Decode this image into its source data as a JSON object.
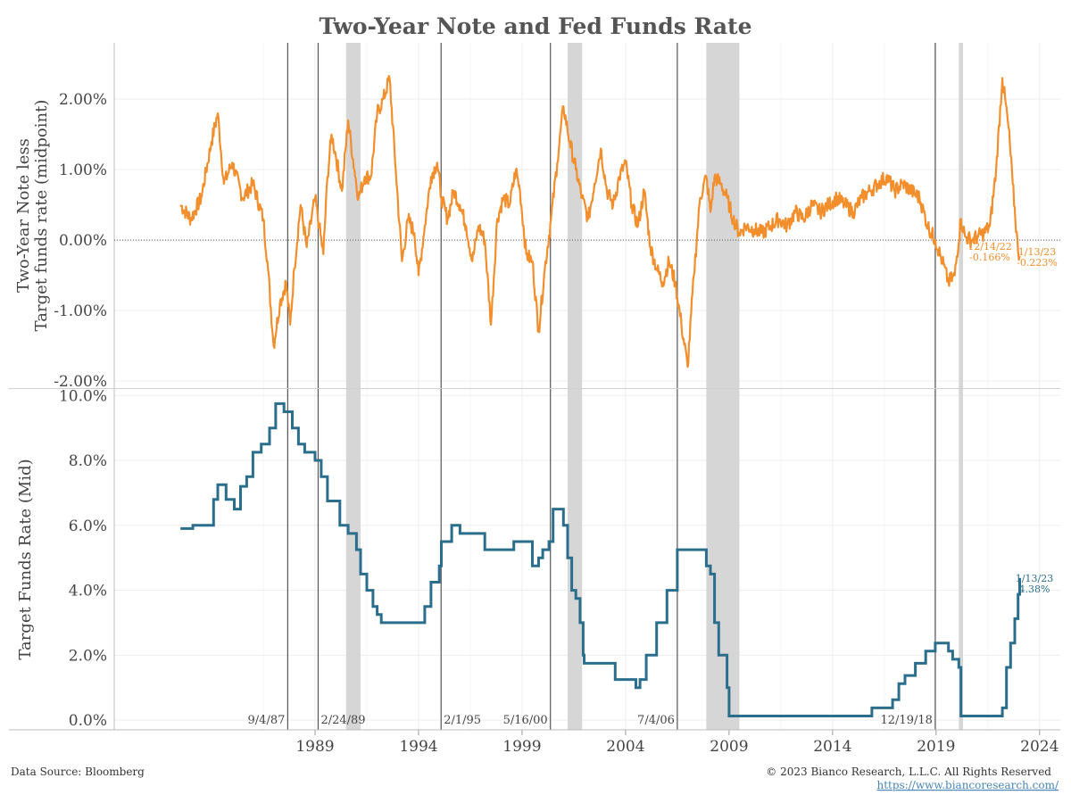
{
  "title": "Two-Year Note and Fed Funds Rate",
  "footer": {
    "source": "Data Source: Bloomberg",
    "copyright": "© 2023 Bianco Research, L.L.C. All Rights Reserved",
    "url": "https://www.biancoresearch.com/"
  },
  "colors": {
    "spread": "#f28e2b",
    "fedfunds": "#2a6e8c",
    "recession": "#d6d6d6",
    "event_line": "#555555",
    "grid": "#eeeeee"
  },
  "chart_data": [
    {
      "type": "line",
      "panel": "top",
      "ylabel": "Two-Year Note less\nTarget funds rate (midpoint)",
      "ylim": [
        -2.1,
        2.8
      ],
      "yticks": [
        2.0,
        1.0,
        0.0,
        -1.0,
        -2.0
      ],
      "ytick_labels": [
        "2.00%",
        "1.00%",
        "0.00%",
        "-1.00%",
        "-2.00%"
      ],
      "zero_line": "dotted",
      "series": [
        {
          "x": [
            1982.5,
            1983.0,
            1983.5,
            1984.0,
            1984.3,
            1984.6,
            1985.0,
            1985.5,
            1986.0,
            1986.5,
            1986.7,
            1987.0,
            1987.3,
            1987.6,
            1987.8,
            1988.0,
            1988.3,
            1988.6,
            1989.0,
            1989.2,
            1989.4,
            1989.6,
            1989.8,
            1990.0,
            1990.3,
            1990.6,
            1990.9,
            1991.1,
            1991.4,
            1991.7,
            1992.0,
            1992.3,
            1992.6,
            1992.9,
            1993.2,
            1993.5,
            1993.8,
            1994.0,
            1994.3,
            1994.6,
            1994.9,
            1995.1,
            1995.4,
            1995.7,
            1996.0,
            1996.3,
            1996.6,
            1996.9,
            1997.2,
            1997.5,
            1997.8,
            1998.1,
            1998.4,
            1998.7,
            1998.9,
            1999.2,
            1999.5,
            1999.8,
            2000.1,
            2000.4,
            2000.7,
            2001.0,
            2001.3,
            2001.6,
            2001.9,
            2002.2,
            2002.5,
            2002.8,
            2003.1,
            2003.4,
            2003.7,
            2004.0,
            2004.3,
            2004.6,
            2004.9,
            2005.2,
            2005.5,
            2005.8,
            2006.1,
            2006.4,
            2006.7,
            2007.0,
            2007.3,
            2007.6,
            2007.9,
            2008.1,
            2008.3,
            2008.6,
            2008.9,
            2009.2,
            2009.5,
            2009.8,
            2010.2,
            2010.6,
            2011.0,
            2011.4,
            2011.8,
            2012.2,
            2012.6,
            2013.0,
            2013.4,
            2013.8,
            2014.2,
            2014.6,
            2015.0,
            2015.4,
            2015.8,
            2016.2,
            2016.6,
            2017.0,
            2017.4,
            2017.8,
            2018.2,
            2018.6,
            2018.96,
            2019.3,
            2019.6,
            2019.9,
            2020.2,
            2020.4,
            2020.7,
            2021.0,
            2021.3,
            2021.6,
            2021.9,
            2022.2,
            2022.5,
            2022.7,
            2022.96,
            2023.04
          ],
          "y": [
            0.5,
            0.3,
            0.6,
            1.4,
            1.8,
            0.8,
            1.1,
            0.6,
            0.8,
            0.3,
            -0.3,
            -1.5,
            -0.9,
            -0.6,
            -1.2,
            -0.4,
            0.5,
            -0.1,
            0.6,
            0.2,
            -0.2,
            0.9,
            1.5,
            1.2,
            0.7,
            1.7,
            1.0,
            0.6,
            0.9,
            0.9,
            1.8,
            2.0,
            2.3,
            1.0,
            -0.3,
            0.3,
            0.1,
            -0.5,
            0.2,
            0.9,
            1.1,
            0.6,
            0.3,
            0.7,
            0.5,
            0.2,
            -0.3,
            0.2,
            0.0,
            -1.2,
            0.3,
            0.6,
            0.5,
            1.0,
            0.7,
            -0.2,
            -0.3,
            -1.3,
            -0.4,
            0.3,
            1.1,
            1.9,
            1.4,
            1.0,
            0.6,
            0.3,
            0.8,
            1.3,
            0.7,
            0.5,
            0.9,
            1.1,
            0.5,
            0.2,
            0.7,
            -0.1,
            -0.4,
            -0.6,
            -0.3,
            -0.6,
            -1.2,
            -1.8,
            -0.5,
            0.6,
            0.9,
            0.4,
            0.9,
            0.8,
            0.6,
            0.3,
            0.1,
            0.2,
            0.15,
            0.1,
            0.2,
            0.3,
            0.2,
            0.4,
            0.3,
            0.5,
            0.4,
            0.5,
            0.6,
            0.5,
            0.4,
            0.6,
            0.7,
            0.8,
            0.9,
            0.7,
            0.8,
            0.7,
            0.6,
            0.2,
            0.0,
            -0.3,
            -0.6,
            -0.5,
            0.3,
            0.05,
            0.0,
            0.05,
            0.1,
            0.2,
            1.0,
            2.3,
            1.6,
            0.8,
            -0.166,
            -0.223
          ]
        }
      ],
      "annotations": [
        {
          "date": "12/14/22",
          "value": "-0.166%"
        },
        {
          "date": "1/13/23",
          "value": "-0.223%"
        }
      ]
    },
    {
      "type": "line",
      "panel": "bottom",
      "ylabel": "Target Funds Rate (Mid)",
      "ylim": [
        -0.3,
        10.2
      ],
      "yticks": [
        10.0,
        8.0,
        6.0,
        4.0,
        2.0,
        0.0
      ],
      "ytick_labels": [
        "10.0%",
        "8.0%",
        "6.0%",
        "4.0%",
        "2.0%",
        "0.0%"
      ],
      "step": true,
      "series": [
        {
          "x": [
            1982.5,
            1982.8,
            1983.1,
            1983.6,
            1984.1,
            1984.3,
            1984.7,
            1985.1,
            1985.4,
            1985.7,
            1986.0,
            1986.4,
            1986.8,
            1987.1,
            1987.5,
            1987.9,
            1988.2,
            1988.5,
            1988.7,
            1989.0,
            1989.3,
            1989.6,
            1990.2,
            1990.6,
            1991.0,
            1991.2,
            1991.5,
            1991.8,
            1992.0,
            1992.2,
            1992.6,
            1993.0,
            1994.0,
            1994.3,
            1994.6,
            1995.0,
            1995.1,
            1995.6,
            1996.0,
            1997.2,
            1998.0,
            1998.6,
            1998.9,
            1999.2,
            1999.5,
            1999.8,
            2000.0,
            2000.3,
            2000.5,
            2001.0,
            2001.2,
            2001.4,
            2001.6,
            2001.8,
            2001.95,
            2002.0,
            2002.9,
            2003.5,
            2004.5,
            2004.7,
            2005.0,
            2005.5,
            2006.0,
            2006.5,
            2007.7,
            2007.9,
            2008.1,
            2008.3,
            2008.5,
            2008.9,
            2009.0,
            2010.0,
            2015.9,
            2016.9,
            2017.2,
            2017.5,
            2018.0,
            2018.5,
            2018.96,
            2019.6,
            2019.8,
            2020.1,
            2020.2,
            2021.9,
            2022.2,
            2022.4,
            2022.6,
            2022.8,
            2022.96,
            2023.04
          ],
          "y": [
            5.9,
            5.9,
            6.0,
            6.0,
            6.8,
            7.25,
            6.8,
            6.5,
            7.2,
            7.5,
            8.25,
            8.5,
            9.0,
            9.75,
            9.5,
            9.0,
            8.5,
            8.25,
            8.25,
            8.0,
            7.5,
            6.75,
            6.0,
            5.75,
            5.25,
            4.5,
            4.0,
            3.5,
            3.25,
            3.0,
            3.0,
            3.0,
            3.0,
            3.5,
            4.25,
            4.75,
            5.5,
            6.0,
            5.75,
            5.25,
            5.25,
            5.5,
            5.5,
            5.5,
            4.75,
            5.0,
            5.25,
            5.5,
            6.5,
            6.0,
            5.0,
            4.0,
            3.75,
            3.0,
            2.0,
            1.75,
            1.75,
            1.25,
            1.0,
            1.25,
            2.0,
            3.0,
            4.0,
            5.25,
            5.25,
            4.75,
            4.5,
            3.0,
            2.0,
            1.0,
            0.125,
            0.125,
            0.375,
            0.625,
            1.125,
            1.375,
            1.75,
            2.125,
            2.375,
            2.125,
            1.875,
            1.625,
            0.125,
            0.125,
            0.375,
            1.625,
            2.375,
            3.125,
            3.875,
            4.375
          ]
        }
      ],
      "annotations": [
        {
          "date": "1/13/23",
          "value": "4.38%"
        }
      ]
    }
  ],
  "x_axis": {
    "range": [
      1979.3,
      2025.0
    ],
    "ticks": [
      1989,
      1994,
      1999,
      2004,
      2009,
      2014,
      2019,
      2024
    ],
    "tick_labels": [
      "1989",
      "1994",
      "1999",
      "2004",
      "2009",
      "2014",
      "2019",
      "2024"
    ]
  },
  "events": [
    {
      "x": 1987.68,
      "label": "9/4/87"
    },
    {
      "x": 1989.15,
      "label": "2/24/89"
    },
    {
      "x": 1995.09,
      "label": "2/1/95"
    },
    {
      "x": 2000.37,
      "label": "5/16/00"
    },
    {
      "x": 2006.5,
      "label": "7/4/06"
    },
    {
      "x": 2018.96,
      "label": "12/19/18"
    }
  ],
  "recessions": [
    {
      "start": 1990.5,
      "end": 1991.2
    },
    {
      "start": 2001.2,
      "end": 2001.9
    },
    {
      "start": 2007.9,
      "end": 2009.5
    },
    {
      "start": 2020.1,
      "end": 2020.3
    }
  ]
}
